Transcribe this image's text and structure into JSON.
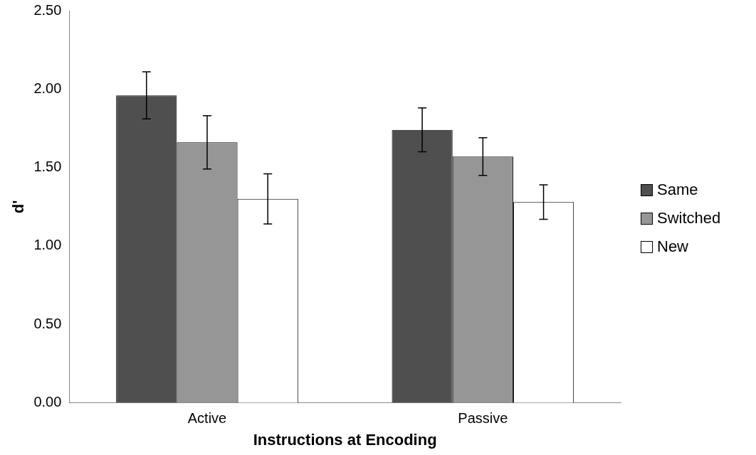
{
  "chart_data": {
    "type": "bar",
    "xlabel": "Instructions at Encoding",
    "ylabel": "d'",
    "categories": [
      "Active",
      "Passive"
    ],
    "series": [
      {
        "name": "Same",
        "color": "#4f4f4f",
        "values": [
          1.96,
          1.74
        ],
        "errors": [
          0.15,
          0.14
        ]
      },
      {
        "name": "Switched",
        "color": "#969696",
        "values": [
          1.66,
          1.57
        ],
        "errors": [
          0.17,
          0.12
        ]
      },
      {
        "name": "New",
        "color": "#ffffff",
        "values": [
          1.3,
          1.28
        ],
        "errors": [
          0.16,
          0.11
        ]
      }
    ],
    "ylim": [
      0,
      2.5
    ],
    "yticks": [
      {
        "value": 0,
        "label": "0.00"
      },
      {
        "value": 0.5,
        "label": "0.50"
      },
      {
        "value": 1,
        "label": "1.00"
      },
      {
        "value": 1.5,
        "label": "1.50"
      },
      {
        "value": 2,
        "label": "2.00"
      },
      {
        "value": 2.5,
        "label": "2.50"
      }
    ],
    "grid": false,
    "legend": "right"
  }
}
